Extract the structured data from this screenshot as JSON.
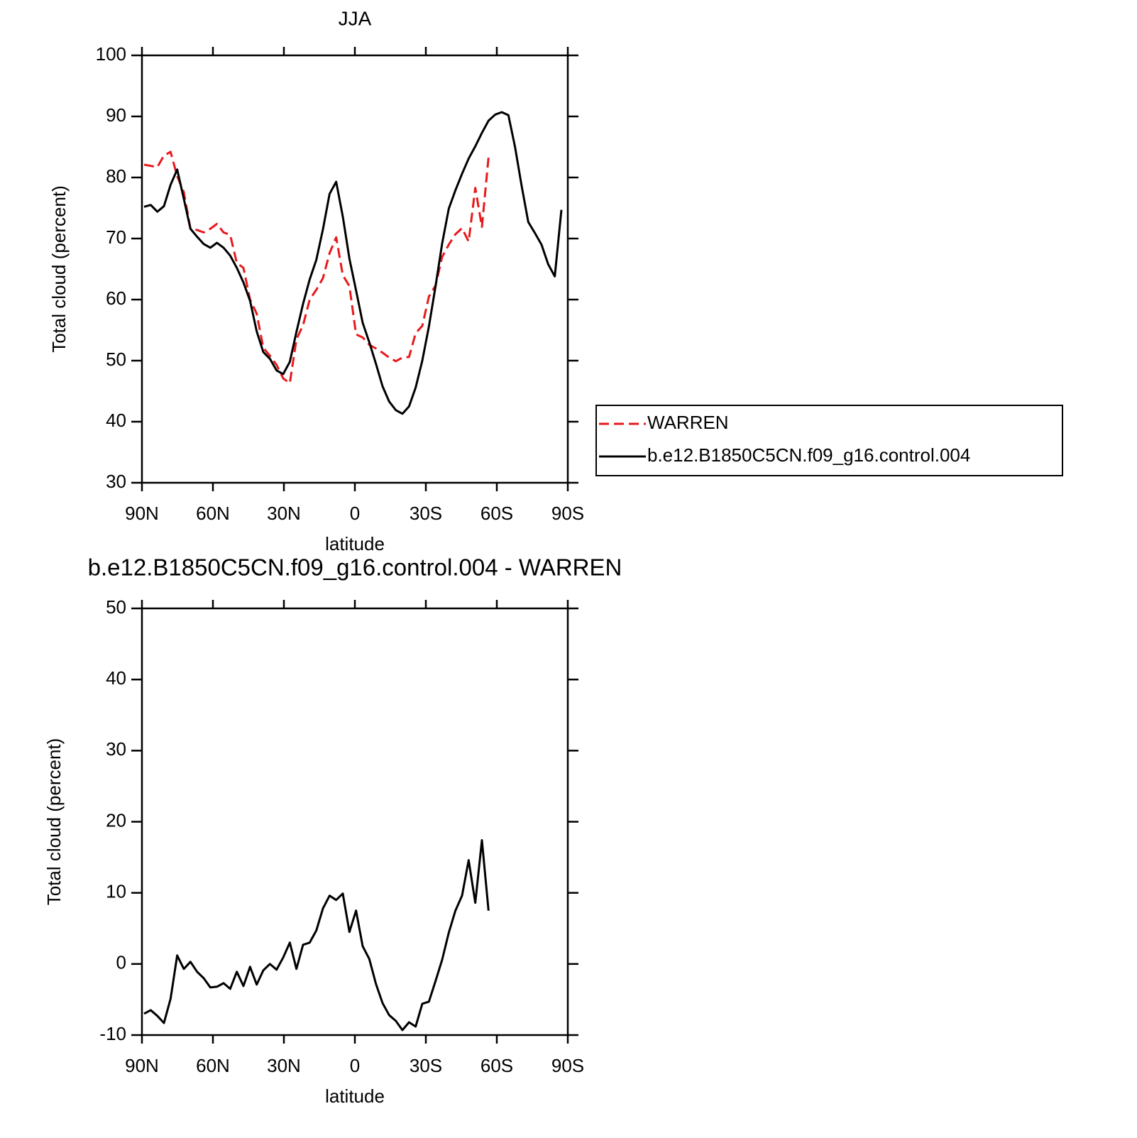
{
  "chart_data": [
    {
      "type": "line",
      "title": "JJA",
      "xlabel": "latitude",
      "ylabel": "Total cloud (percent)",
      "x": [
        89.1,
        86.3,
        83.5,
        80.7,
        77.9,
        75.1,
        72.3,
        69.5,
        66.7,
        63.9,
        61.1,
        58.3,
        55.5,
        52.7,
        49.9,
        47.1,
        44.3,
        41.5,
        38.7,
        35.9,
        33.1,
        30.3,
        27.5,
        24.7,
        21.9,
        19.1,
        16.3,
        13.5,
        10.7,
        7.9,
        5.1,
        2.3,
        -0.5,
        -3.3,
        -6.1,
        -8.9,
        -11.7,
        -14.5,
        -17.3,
        -20.1,
        -22.9,
        -25.7,
        -28.5,
        -31.3,
        -34.1,
        -36.9,
        -39.7,
        -42.5,
        -45.3,
        -48.1,
        -50.9,
        -53.7,
        -56.5,
        -59.3,
        -62.1,
        -64.9,
        -67.7,
        -70.5,
        -73.3,
        -76.1,
        -78.9,
        -81.7,
        -84.5,
        -87.3
      ],
      "series": [
        {
          "name": "WARREN",
          "color": "#e8191c",
          "line_style": "dashed",
          "values": [
            82.1,
            81.9,
            81.7,
            83.6,
            84.2,
            80.2,
            77.6,
            71.6,
            71.4,
            71.0,
            71.6,
            72.4,
            71.0,
            70.6,
            66.0,
            65.2,
            60.0,
            57.7,
            52.1,
            50.8,
            49.3,
            47.1,
            46.3,
            53.5,
            55.8,
            60.0,
            61.6,
            63.5,
            67.6,
            70.2,
            64.0,
            62.2,
            54.3,
            53.8,
            52.6,
            52.0,
            51.3,
            50.5,
            49.9,
            50.5,
            50.6,
            54.5,
            55.7,
            60.5,
            62.3,
            67.0,
            69.0,
            70.7,
            71.7,
            69.5,
            78.3,
            71.9,
            83.3,
            null,
            null,
            null,
            null,
            null,
            null,
            null,
            null,
            null,
            null,
            null
          ]
        },
        {
          "name": "b.e12.B1850C5CN.f09_g16.control.004",
          "color": "#000000",
          "line_style": "solid",
          "values": [
            75.2,
            75.5,
            74.4,
            75.3,
            78.8,
            81.3,
            76.5,
            71.6,
            70.3,
            69.1,
            68.5,
            69.3,
            68.5,
            67.2,
            65.2,
            62.8,
            59.8,
            54.8,
            51.4,
            50.3,
            48.4,
            47.8,
            49.8,
            54.7,
            59.3,
            63.3,
            66.5,
            71.5,
            77.3,
            79.3,
            73.6,
            66.7,
            61.5,
            56.2,
            53.0,
            49.5,
            45.8,
            43.3,
            41.9,
            41.3,
            42.5,
            45.6,
            50.0,
            55.6,
            62.2,
            69.2,
            74.9,
            77.9,
            80.6,
            83.1,
            85.1,
            87.3,
            89.3,
            90.3,
            90.7,
            90.2,
            85.0,
            78.6,
            72.7,
            70.9,
            69.0,
            65.8,
            63.8,
            74.7
          ]
        }
      ],
      "xlim": [
        90,
        -90
      ],
      "xticks": [
        {
          "value": 90,
          "label": "90N"
        },
        {
          "value": 60,
          "label": "60N"
        },
        {
          "value": 30,
          "label": "30N"
        },
        0,
        {
          "value": -30,
          "label": "30S"
        },
        {
          "value": -60,
          "label": "60S"
        },
        {
          "value": -90,
          "label": "90S"
        }
      ],
      "ylim": [
        30,
        100
      ],
      "yticks": [
        30,
        40,
        50,
        60,
        70,
        80,
        90,
        100
      ],
      "legend": "right"
    },
    {
      "type": "line",
      "title": "b.e12.B1850C5CN.f09_g16.control.004 - WARREN",
      "xlabel": "latitude",
      "ylabel": "Total cloud (percent)",
      "x": [
        89.1,
        86.3,
        83.5,
        80.7,
        77.9,
        75.1,
        72.3,
        69.5,
        66.7,
        63.9,
        61.1,
        58.3,
        55.5,
        52.7,
        49.9,
        47.1,
        44.3,
        41.5,
        38.7,
        35.9,
        33.1,
        30.3,
        27.5,
        24.7,
        21.9,
        19.1,
        16.3,
        13.5,
        10.7,
        7.9,
        5.1,
        2.3,
        -0.5,
        -3.3,
        -6.1,
        -8.9,
        -11.7,
        -14.5,
        -17.3,
        -20.1,
        -22.9,
        -25.7,
        -28.5,
        -31.3,
        -34.1,
        -36.9,
        -39.7,
        -42.5,
        -45.3,
        -48.1,
        -50.9,
        -53.7,
        -56.5,
        -59.3,
        -62.1,
        -64.9,
        -67.7,
        -70.5,
        -73.3,
        -76.1,
        -78.9,
        -81.7,
        -84.5,
        -87.3
      ],
      "series": [
        {
          "color": "#000000",
          "line_style": "solid",
          "values": [
            -7.0,
            -6.5,
            -7.3,
            -8.3,
            -4.9,
            1.2,
            -0.7,
            0.3,
            -1.1,
            -2.0,
            -3.3,
            -3.2,
            -2.7,
            -3.5,
            -1.1,
            -3.1,
            -0.4,
            -2.9,
            -0.9,
            0.0,
            -0.8,
            0.9,
            3.0,
            -0.7,
            2.7,
            3.0,
            4.7,
            7.8,
            9.6,
            9.0,
            9.9,
            4.5,
            7.5,
            2.5,
            0.7,
            -2.8,
            -5.5,
            -7.2,
            -8.0,
            -9.3,
            -8.2,
            -8.8,
            -5.6,
            -5.3,
            -2.4,
            0.6,
            4.4,
            7.5,
            9.6,
            14.6,
            8.6,
            17.4,
            7.5,
            null,
            null,
            null,
            null,
            null,
            null,
            null,
            null,
            null,
            null,
            null
          ]
        }
      ],
      "xlim": [
        90,
        -90
      ],
      "xticks": [
        {
          "value": 90,
          "label": "90N"
        },
        {
          "value": 60,
          "label": "60N"
        },
        {
          "value": 30,
          "label": "30N"
        },
        0,
        {
          "value": -30,
          "label": "30S"
        },
        {
          "value": -60,
          "label": "60S"
        },
        {
          "value": -90,
          "label": "90S"
        }
      ],
      "ylim": [
        -10,
        50
      ],
      "yticks": [
        -10,
        0,
        10,
        20,
        30,
        40,
        50
      ]
    }
  ]
}
